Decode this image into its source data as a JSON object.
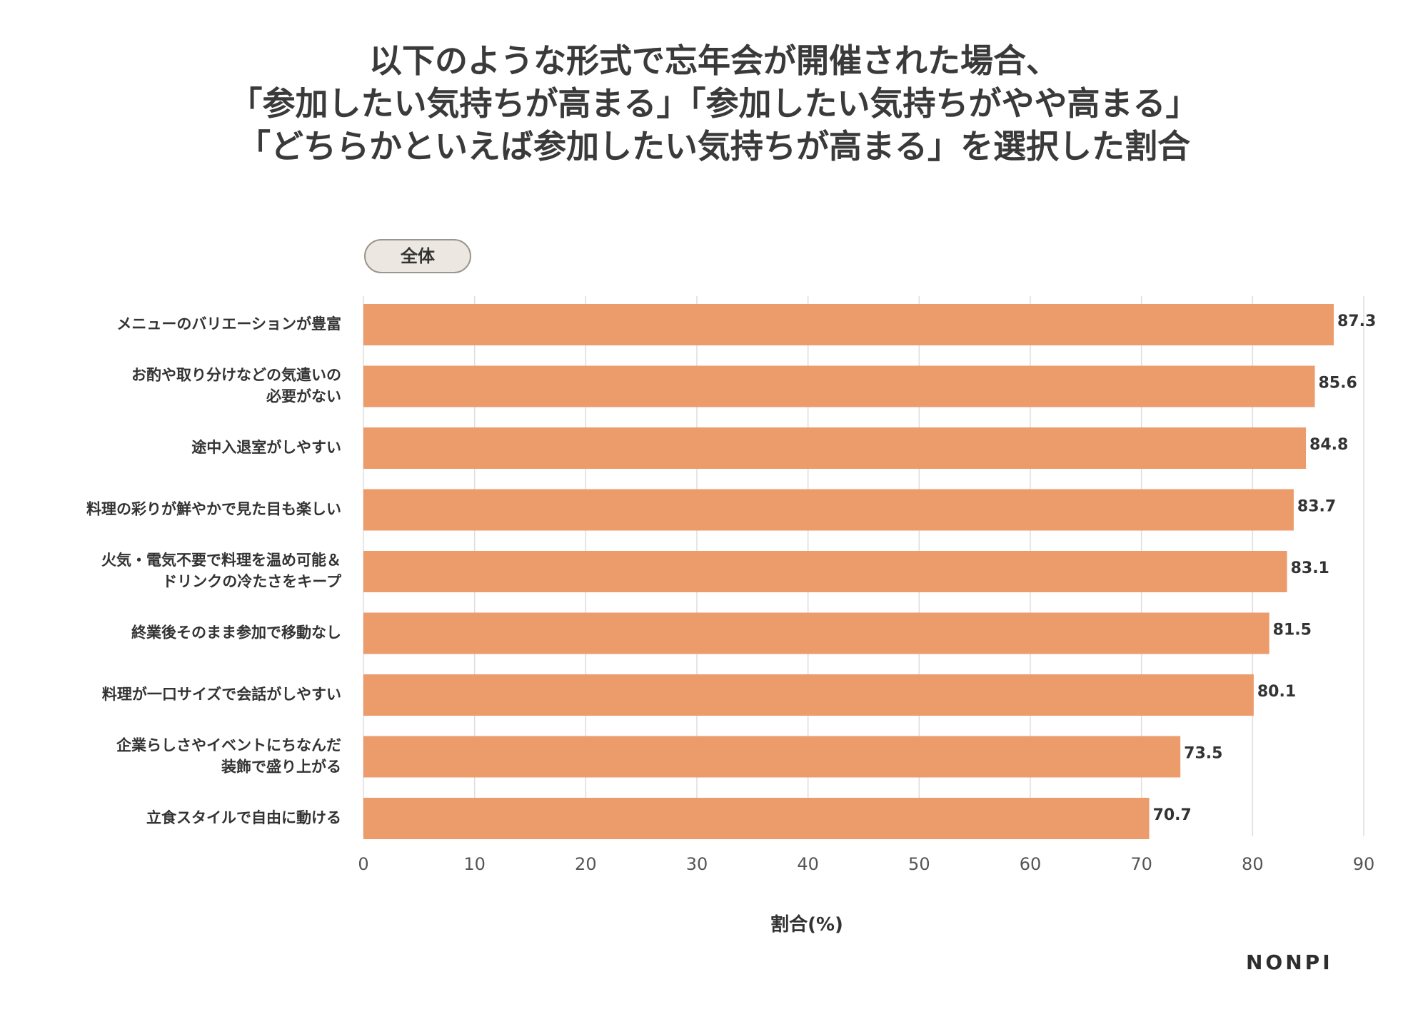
{
  "title": {
    "line1": "以下のような形式で忘年会が開催された場合、",
    "line2": "「参加したい気持ちが高まる」「参加したい気持ちがやや高まる」",
    "line3": "「どちらかといえば参加したい気持ちが高まる」を選択した割合"
  },
  "segment_label": "全体",
  "brand": "NONPI",
  "colors": {
    "bar": "#ec9b6b",
    "grid": "#dddddd",
    "text": "#333333"
  },
  "chart_data": {
    "type": "bar",
    "orientation": "horizontal",
    "title": "以下のような形式で忘年会が開催された場合、「参加したい気持ちが高まる」「参加したい気持ちがやや高まる」「どちらかといえば参加したい気持ちが高まる」を選択した割合",
    "xlabel": "割合(%)",
    "ylabel": "",
    "xlim": [
      0,
      90
    ],
    "xticks": [
      0,
      10,
      20,
      30,
      40,
      50,
      60,
      70,
      80,
      90
    ],
    "grid": true,
    "series": [
      {
        "name": "全体",
        "values": [
          87.3,
          85.6,
          84.8,
          83.7,
          83.1,
          81.5,
          80.1,
          73.5,
          70.7
        ]
      }
    ],
    "categories": [
      [
        "メニューのバリエーションが豊富"
      ],
      [
        "お酌や取り分けなどの気遣いの",
        "必要がない"
      ],
      [
        "途中入退室がしやすい"
      ],
      [
        "料理の彩りが鮮やかで見た目も楽しい"
      ],
      [
        "火気・電気不要で料理を温め可能＆",
        "ドリンクの冷たさをキープ"
      ],
      [
        "終業後そのまま参加で移動なし"
      ],
      [
        "料理が一口サイズで会話がしやすい"
      ],
      [
        "企業らしさやイベントにちなんだ",
        "装飾で盛り上がる"
      ],
      [
        "立食スタイルで自由に動ける"
      ]
    ],
    "value_labels": [
      "87.3",
      "85.6",
      "84.8",
      "83.7",
      "83.1",
      "81.5",
      "80.1",
      "73.5",
      "70.7"
    ]
  }
}
